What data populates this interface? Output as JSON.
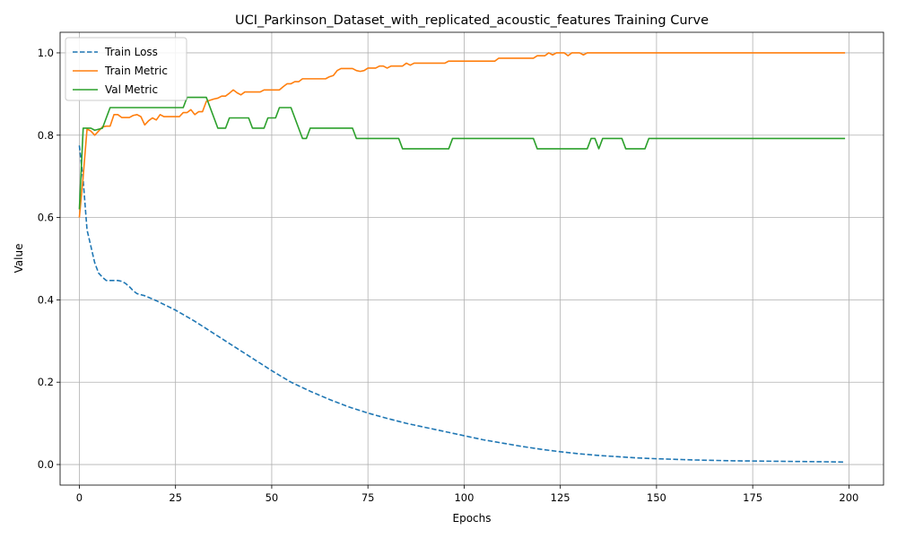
{
  "chart_data": {
    "type": "line",
    "title": "UCI_Parkinson_Dataset_with_replicated_acoustic_features Training Curve",
    "xlabel": "Epochs",
    "ylabel": "Value",
    "xlim": [
      -5,
      209
    ],
    "ylim": [
      -0.05,
      1.05
    ],
    "xticks": [
      0,
      25,
      50,
      75,
      100,
      125,
      150,
      175,
      200
    ],
    "yticks": [
      0.0,
      0.2,
      0.4,
      0.6,
      0.8,
      1.0
    ],
    "grid": true,
    "legend_position": "top-left",
    "series": [
      {
        "name": "Train Loss",
        "color": "#1f77b4",
        "style": "dashed",
        "points": [
          [
            0,
            0.775
          ],
          [
            1,
            0.69
          ],
          [
            2,
            0.57
          ],
          [
            3,
            0.53
          ],
          [
            4,
            0.49
          ],
          [
            5,
            0.465
          ],
          [
            6,
            0.455
          ],
          [
            7,
            0.447
          ],
          [
            8,
            0.447
          ],
          [
            9,
            0.447
          ],
          [
            10,
            0.447
          ],
          [
            11,
            0.445
          ],
          [
            12,
            0.44
          ],
          [
            13,
            0.432
          ],
          [
            14,
            0.422
          ],
          [
            15,
            0.415
          ],
          [
            17,
            0.41
          ],
          [
            20,
            0.398
          ],
          [
            25,
            0.375
          ],
          [
            30,
            0.348
          ],
          [
            35,
            0.318
          ],
          [
            40,
            0.288
          ],
          [
            45,
            0.258
          ],
          [
            50,
            0.228
          ],
          [
            55,
            0.2
          ],
          [
            60,
            0.178
          ],
          [
            65,
            0.158
          ],
          [
            70,
            0.14
          ],
          [
            75,
            0.125
          ],
          [
            80,
            0.112
          ],
          [
            85,
            0.1
          ],
          [
            90,
            0.09
          ],
          [
            95,
            0.08
          ],
          [
            100,
            0.07
          ],
          [
            105,
            0.06
          ],
          [
            110,
            0.052
          ],
          [
            115,
            0.044
          ],
          [
            120,
            0.037
          ],
          [
            125,
            0.031
          ],
          [
            130,
            0.026
          ],
          [
            135,
            0.022
          ],
          [
            140,
            0.019
          ],
          [
            145,
            0.016
          ],
          [
            150,
            0.014
          ],
          [
            160,
            0.011
          ],
          [
            170,
            0.009
          ],
          [
            180,
            0.008
          ],
          [
            190,
            0.007
          ],
          [
            199,
            0.006
          ]
        ]
      },
      {
        "name": "Train Metric",
        "color": "#ff7f0e",
        "style": "solid",
        "points": [
          [
            0,
            0.6
          ],
          [
            1,
            0.7
          ],
          [
            2,
            0.815
          ],
          [
            3,
            0.81
          ],
          [
            4,
            0.8
          ],
          [
            5,
            0.81
          ],
          [
            6,
            0.82
          ],
          [
            7,
            0.822
          ],
          [
            8,
            0.822
          ],
          [
            9,
            0.85
          ],
          [
            10,
            0.85
          ],
          [
            11,
            0.843
          ],
          [
            13,
            0.843
          ],
          [
            14,
            0.848
          ],
          [
            15,
            0.85
          ],
          [
            16,
            0.845
          ],
          [
            17,
            0.825
          ],
          [
            18,
            0.835
          ],
          [
            19,
            0.842
          ],
          [
            20,
            0.837
          ],
          [
            21,
            0.85
          ],
          [
            22,
            0.845
          ],
          [
            25,
            0.845
          ],
          [
            26,
            0.845
          ],
          [
            27,
            0.855
          ],
          [
            28,
            0.855
          ],
          [
            29,
            0.862
          ],
          [
            30,
            0.85
          ],
          [
            31,
            0.857
          ],
          [
            32,
            0.857
          ],
          [
            33,
            0.882
          ],
          [
            34,
            0.885
          ],
          [
            35,
            0.888
          ],
          [
            36,
            0.89
          ],
          [
            37,
            0.895
          ],
          [
            38,
            0.895
          ],
          [
            39,
            0.902
          ],
          [
            40,
            0.91
          ],
          [
            41,
            0.903
          ],
          [
            42,
            0.898
          ],
          [
            43,
            0.905
          ],
          [
            45,
            0.905
          ],
          [
            47,
            0.905
          ],
          [
            48,
            0.91
          ],
          [
            52,
            0.91
          ],
          [
            53,
            0.918
          ],
          [
            54,
            0.925
          ],
          [
            55,
            0.925
          ],
          [
            56,
            0.93
          ],
          [
            57,
            0.93
          ],
          [
            58,
            0.937
          ],
          [
            64,
            0.937
          ],
          [
            65,
            0.942
          ],
          [
            66,
            0.945
          ],
          [
            67,
            0.957
          ],
          [
            68,
            0.962
          ],
          [
            71,
            0.962
          ],
          [
            72,
            0.957
          ],
          [
            73,
            0.955
          ],
          [
            74,
            0.957
          ],
          [
            75,
            0.963
          ],
          [
            77,
            0.963
          ],
          [
            78,
            0.968
          ],
          [
            79,
            0.968
          ],
          [
            80,
            0.963
          ],
          [
            81,
            0.968
          ],
          [
            84,
            0.968
          ],
          [
            85,
            0.975
          ],
          [
            86,
            0.97
          ],
          [
            87,
            0.975
          ],
          [
            95,
            0.975
          ],
          [
            96,
            0.98
          ],
          [
            108,
            0.98
          ],
          [
            109,
            0.987
          ],
          [
            118,
            0.987
          ],
          [
            119,
            0.993
          ],
          [
            121,
            0.993
          ],
          [
            122,
            1.0
          ],
          [
            123,
            0.995
          ],
          [
            124,
            1.0
          ],
          [
            126,
            1.0
          ],
          [
            127,
            0.993
          ],
          [
            128,
            1.0
          ],
          [
            130,
            1.0
          ],
          [
            131,
            0.995
          ],
          [
            132,
            1.0
          ],
          [
            199,
            1.0
          ]
        ]
      },
      {
        "name": "Val Metric",
        "color": "#2ca02c",
        "style": "solid",
        "points": [
          [
            0,
            0.62
          ],
          [
            1,
            0.817
          ],
          [
            3,
            0.817
          ],
          [
            4,
            0.812
          ],
          [
            6,
            0.817
          ],
          [
            7,
            0.842
          ],
          [
            8,
            0.867
          ],
          [
            27,
            0.867
          ],
          [
            28,
            0.892
          ],
          [
            33,
            0.892
          ],
          [
            34,
            0.867
          ],
          [
            35,
            0.842
          ],
          [
            36,
            0.817
          ],
          [
            38,
            0.817
          ],
          [
            39,
            0.842
          ],
          [
            44,
            0.842
          ],
          [
            45,
            0.817
          ],
          [
            48,
            0.817
          ],
          [
            49,
            0.842
          ],
          [
            51,
            0.842
          ],
          [
            52,
            0.867
          ],
          [
            55,
            0.867
          ],
          [
            57,
            0.817
          ],
          [
            58,
            0.792
          ],
          [
            59,
            0.792
          ],
          [
            60,
            0.817
          ],
          [
            71,
            0.817
          ],
          [
            72,
            0.792
          ],
          [
            83,
            0.792
          ],
          [
            84,
            0.767
          ],
          [
            96,
            0.767
          ],
          [
            97,
            0.792
          ],
          [
            118,
            0.792
          ],
          [
            119,
            0.767
          ],
          [
            132,
            0.767
          ],
          [
            133,
            0.792
          ],
          [
            134,
            0.792
          ],
          [
            135,
            0.767
          ],
          [
            136,
            0.792
          ],
          [
            141,
            0.792
          ],
          [
            142,
            0.767
          ],
          [
            147,
            0.767
          ],
          [
            148,
            0.792
          ],
          [
            199,
            0.792
          ]
        ]
      }
    ]
  }
}
